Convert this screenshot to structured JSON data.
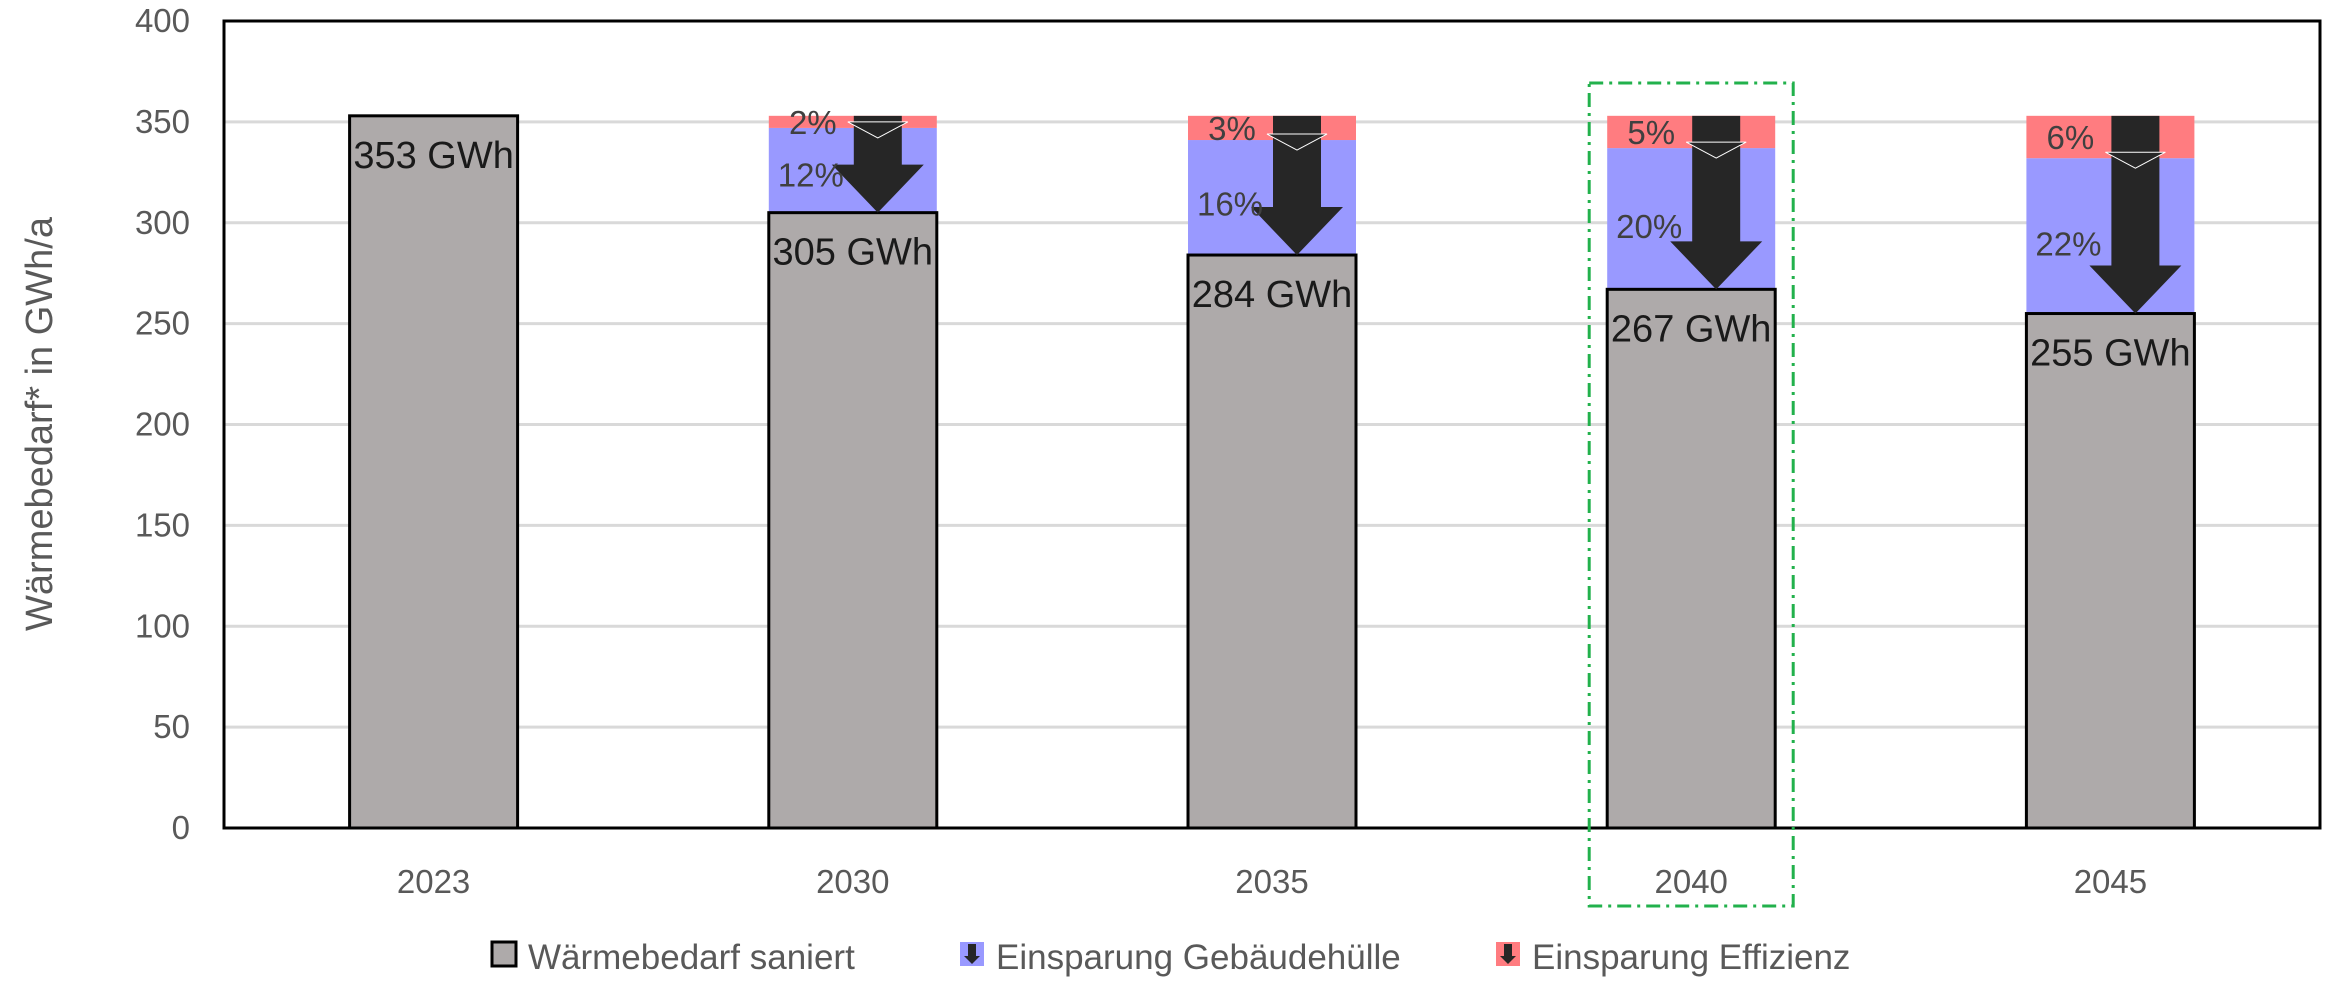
{
  "chart_data": {
    "type": "bar",
    "stacked": true,
    "categories": [
      "2023",
      "2030",
      "2035",
      "2040",
      "2045"
    ],
    "series": [
      {
        "name": "Wärmebedarf saniert",
        "values": [
          353,
          305,
          284,
          267,
          255
        ],
        "color": "#aeaaaa"
      },
      {
        "name": "Einsparung Gebäudehülle",
        "values": [
          0,
          42,
          57,
          70,
          77
        ],
        "color": "#9999ff"
      },
      {
        "name": "Einsparung Effizienz",
        "values": [
          0,
          6,
          12,
          16,
          21
        ],
        "color": "#ff7c80"
      }
    ],
    "bar_labels": [
      "353 GWh",
      "305 GWh",
      "284 GWh",
      "267 GWh",
      "255 GWh"
    ],
    "huelle_pct_labels": [
      "",
      "12%",
      "16%",
      "20%",
      "22%"
    ],
    "effizienz_pct_labels": [
      "",
      "2%",
      "3%",
      "5%",
      "6%"
    ],
    "ylabel": "Wärmebedarf* in GWh/a",
    "xlabel": "",
    "ylim": [
      0,
      400
    ],
    "yticks": [
      "0",
      "50",
      "100",
      "150",
      "200",
      "250",
      "300",
      "350",
      "400"
    ],
    "grid": true,
    "highlighted_category": "2040",
    "legend_position": "bottom"
  }
}
